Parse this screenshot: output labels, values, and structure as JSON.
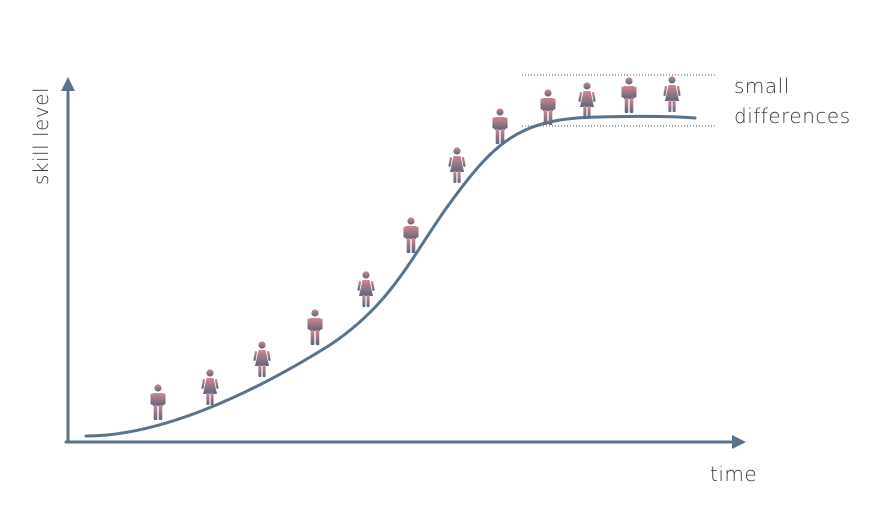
{
  "diagram": {
    "y_axis_label": "skill level",
    "x_axis_label": "time",
    "annotation": {
      "line1": "small",
      "line2": "differences"
    },
    "curve": "s-curve",
    "people": [
      {
        "kind": "man",
        "step": 1
      },
      {
        "kind": "woman",
        "step": 2
      },
      {
        "kind": "woman",
        "step": 3
      },
      {
        "kind": "man",
        "step": 4
      },
      {
        "kind": "woman",
        "step": 5
      },
      {
        "kind": "man",
        "step": 6
      },
      {
        "kind": "woman",
        "step": 7
      },
      {
        "kind": "man",
        "step": 8
      },
      {
        "kind": "man",
        "step": 9
      },
      {
        "kind": "woman",
        "step": 10
      },
      {
        "kind": "man",
        "step": 11
      },
      {
        "kind": "woman",
        "step": 12
      }
    ],
    "colors": {
      "axis": "#5b7389",
      "curve": "#5b7389",
      "figure_top": "#d2868c",
      "figure_bottom": "#5a6781",
      "dotted_line": "#4a5a6b",
      "text": "#333a40"
    }
  }
}
